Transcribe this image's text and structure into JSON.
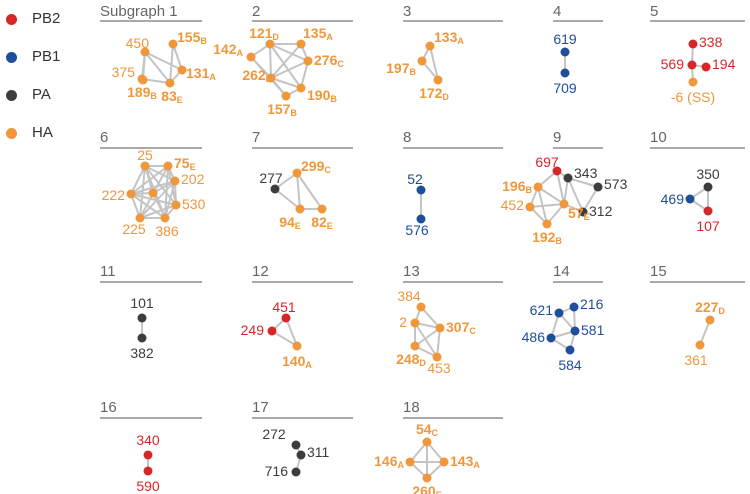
{
  "colors": {
    "PB2": "#d62728",
    "PB1": "#1f4e9b",
    "PA": "#3d3d3d",
    "HA": "#f0973b",
    "edge": "#c4c4c4",
    "rule": "#a9a9a9",
    "title": "#666666"
  },
  "legend": [
    {
      "label": "PB2",
      "group": "PB2"
    },
    {
      "label": "PB1",
      "group": "PB1"
    },
    {
      "label": "PA",
      "group": "PA"
    },
    {
      "label": "HA",
      "group": "HA"
    }
  ],
  "subgraphs": [
    {
      "title": "Subgraph 1",
      "nodes": [
        {
          "num": "450",
          "group": "HA"
        },
        {
          "num": "155",
          "sub": "B",
          "group": "HA",
          "bold": true
        },
        {
          "num": "375",
          "group": "HA"
        },
        {
          "num": "131",
          "sub": "A",
          "group": "HA",
          "bold": true
        },
        {
          "num": "189",
          "sub": "B",
          "group": "HA",
          "bold": true
        },
        {
          "num": "83",
          "sub": "E",
          "group": "HA",
          "bold": true
        }
      ],
      "edges": [
        [
          0,
          2
        ],
        [
          0,
          3
        ],
        [
          0,
          4
        ],
        [
          0,
          5
        ],
        [
          1,
          3
        ],
        [
          2,
          4
        ],
        [
          3,
          5
        ],
        [
          4,
          5
        ],
        [
          1,
          5
        ]
      ]
    },
    {
      "title": "2",
      "nodes": [
        {
          "num": "121",
          "sub": "D",
          "group": "HA",
          "bold": true
        },
        {
          "num": "135",
          "sub": "A",
          "group": "HA",
          "bold": true
        },
        {
          "num": "142",
          "sub": "A",
          "group": "HA",
          "bold": true
        },
        {
          "num": "276",
          "sub": "C",
          "group": "HA",
          "bold": true
        },
        {
          "num": "262",
          "sub": "E",
          "group": "HA",
          "bold": true
        },
        {
          "num": "157",
          "sub": "B",
          "group": "HA",
          "bold": true
        },
        {
          "num": "190",
          "sub": "B",
          "group": "HA",
          "bold": true
        }
      ],
      "edges": [
        [
          0,
          1
        ],
        [
          0,
          2
        ],
        [
          0,
          3
        ],
        [
          0,
          4
        ],
        [
          1,
          3
        ],
        [
          1,
          4
        ],
        [
          2,
          4
        ],
        [
          2,
          5
        ],
        [
          3,
          4
        ],
        [
          3,
          6
        ],
        [
          4,
          5
        ],
        [
          4,
          6
        ],
        [
          5,
          6
        ],
        [
          0,
          6
        ]
      ]
    },
    {
      "title": "3",
      "nodes": [
        {
          "num": "133",
          "sub": "A",
          "group": "HA",
          "bold": true
        },
        {
          "num": "197",
          "sub": "B",
          "group": "HA",
          "bold": true
        },
        {
          "num": "172",
          "sub": "D",
          "group": "HA",
          "bold": true
        }
      ],
      "edges": [
        [
          0,
          1
        ],
        [
          0,
          2
        ],
        [
          1,
          2
        ]
      ]
    },
    {
      "title": "4",
      "nodes": [
        {
          "num": "619",
          "group": "PB1"
        },
        {
          "num": "709",
          "group": "PB1"
        }
      ],
      "edges": [
        [
          0,
          1
        ]
      ]
    },
    {
      "title": "5",
      "nodes": [
        {
          "num": "338",
          "group": "PB2"
        },
        {
          "num": "569",
          "group": "PB2"
        },
        {
          "num": "194",
          "group": "PB2"
        },
        {
          "num": "-6 (SS)",
          "group": "HA"
        }
      ],
      "edges": [
        [
          0,
          1
        ],
        [
          1,
          2
        ],
        [
          1,
          3
        ]
      ]
    },
    {
      "title": "6",
      "nodes": [
        {
          "num": "25",
          "group": "HA"
        },
        {
          "num": "75",
          "sub": "E",
          "group": "HA",
          "bold": true
        },
        {
          "num": "202",
          "group": "HA"
        },
        {
          "num": "530",
          "group": "HA"
        },
        {
          "num": "386",
          "group": "HA"
        },
        {
          "num": "225",
          "group": "HA"
        },
        {
          "num": "222",
          "group": "HA"
        },
        {
          "num": "",
          "group": "HA"
        }
      ],
      "edges": [
        [
          0,
          1
        ],
        [
          0,
          2
        ],
        [
          0,
          3
        ],
        [
          0,
          4
        ],
        [
          0,
          5
        ],
        [
          0,
          6
        ],
        [
          1,
          2
        ],
        [
          1,
          3
        ],
        [
          1,
          4
        ],
        [
          1,
          5
        ],
        [
          1,
          6
        ],
        [
          2,
          3
        ],
        [
          2,
          4
        ],
        [
          2,
          5
        ],
        [
          2,
          6
        ],
        [
          3,
          4
        ],
        [
          3,
          5
        ],
        [
          3,
          6
        ],
        [
          4,
          5
        ],
        [
          4,
          6
        ],
        [
          5,
          6
        ],
        [
          7,
          0
        ],
        [
          7,
          2
        ],
        [
          7,
          4
        ],
        [
          7,
          6
        ]
      ]
    },
    {
      "title": "7",
      "nodes": [
        {
          "num": "277",
          "group": "PA"
        },
        {
          "num": "299",
          "sub": "C",
          "group": "HA",
          "bold": true
        },
        {
          "num": "94",
          "sub": "E",
          "group": "HA",
          "bold": true
        },
        {
          "num": "82",
          "sub": "E",
          "group": "HA",
          "bold": true
        }
      ],
      "edges": [
        [
          0,
          1
        ],
        [
          0,
          2
        ],
        [
          1,
          2
        ],
        [
          1,
          3
        ],
        [
          2,
          3
        ]
      ]
    },
    {
      "title": "8",
      "nodes": [
        {
          "num": "52",
          "group": "PB1"
        },
        {
          "num": "576",
          "group": "PB1"
        }
      ],
      "edges": [
        [
          0,
          1
        ]
      ]
    },
    {
      "title": "9",
      "nodes": [
        {
          "num": "697",
          "group": "PB2"
        },
        {
          "num": "343",
          "group": "PA"
        },
        {
          "num": "573",
          "group": "PA"
        },
        {
          "num": "312",
          "group": "PA"
        },
        {
          "num": "196",
          "sub": "B",
          "group": "HA",
          "bold": true
        },
        {
          "num": "452",
          "group": "HA"
        },
        {
          "num": "57",
          "sub": "E",
          "group": "HA",
          "bold": true
        },
        {
          "num": "192",
          "sub": "B",
          "group": "HA",
          "bold": true
        }
      ],
      "edges": [
        [
          0,
          1
        ],
        [
          0,
          4
        ],
        [
          0,
          6
        ],
        [
          1,
          2
        ],
        [
          1,
          3
        ],
        [
          1,
          6
        ],
        [
          2,
          3
        ],
        [
          4,
          5
        ],
        [
          4,
          6
        ],
        [
          4,
          7
        ],
        [
          5,
          7
        ],
        [
          6,
          7
        ],
        [
          5,
          6
        ],
        [
          3,
          6
        ]
      ]
    },
    {
      "title": "10",
      "nodes": [
        {
          "num": "350",
          "group": "PA"
        },
        {
          "num": "469",
          "group": "PB1"
        },
        {
          "num": "107",
          "group": "PB2"
        }
      ],
      "edges": [
        [
          0,
          1
        ],
        [
          0,
          2
        ],
        [
          1,
          2
        ]
      ]
    },
    {
      "title": "11",
      "nodes": [
        {
          "num": "101",
          "group": "PA"
        },
        {
          "num": "382",
          "group": "PA"
        }
      ],
      "edges": [
        [
          0,
          1
        ]
      ]
    },
    {
      "title": "12",
      "nodes": [
        {
          "num": "451",
          "group": "PB2"
        },
        {
          "num": "249",
          "group": "PB2"
        },
        {
          "num": "140",
          "sub": "A",
          "group": "HA",
          "bold": true
        }
      ],
      "edges": [
        [
          0,
          1
        ],
        [
          0,
          2
        ],
        [
          1,
          2
        ]
      ]
    },
    {
      "title": "13",
      "nodes": [
        {
          "num": "384",
          "group": "HA"
        },
        {
          "num": "2",
          "group": "HA"
        },
        {
          "num": "307",
          "sub": "C",
          "group": "HA",
          "bold": true
        },
        {
          "num": "248",
          "sub": "D",
          "group": "HA",
          "bold": true
        },
        {
          "num": "453",
          "group": "HA"
        }
      ],
      "edges": [
        [
          0,
          1
        ],
        [
          0,
          2
        ],
        [
          1,
          2
        ],
        [
          1,
          3
        ],
        [
          2,
          3
        ],
        [
          2,
          4
        ],
        [
          3,
          4
        ],
        [
          1,
          4
        ]
      ]
    },
    {
      "title": "14",
      "nodes": [
        {
          "num": "621",
          "group": "PB1"
        },
        {
          "num": "216",
          "group": "PB1"
        },
        {
          "num": "581",
          "group": "PB1"
        },
        {
          "num": "486",
          "group": "PB1"
        },
        {
          "num": "584",
          "group": "PB1"
        }
      ],
      "edges": [
        [
          0,
          1
        ],
        [
          0,
          2
        ],
        [
          0,
          3
        ],
        [
          1,
          2
        ],
        [
          2,
          3
        ],
        [
          2,
          4
        ],
        [
          3,
          4
        ]
      ]
    },
    {
      "title": "15",
      "nodes": [
        {
          "num": "227",
          "sub": "D",
          "group": "HA",
          "bold": true
        },
        {
          "num": "361",
          "group": "HA"
        }
      ],
      "edges": [
        [
          0,
          1
        ]
      ]
    },
    {
      "title": "16",
      "nodes": [
        {
          "num": "340",
          "group": "PB2"
        },
        {
          "num": "590",
          "group": "PB2"
        }
      ],
      "edges": [
        [
          0,
          1
        ]
      ]
    },
    {
      "title": "17",
      "nodes": [
        {
          "num": "272",
          "group": "PA"
        },
        {
          "num": "311",
          "group": "PA"
        },
        {
          "num": "716",
          "group": "PA"
        }
      ],
      "edges": [
        [
          0,
          1
        ],
        [
          1,
          2
        ]
      ]
    },
    {
      "title": "18",
      "nodes": [
        {
          "num": "54",
          "sub": "C",
          "group": "HA",
          "bold": true
        },
        {
          "num": "146",
          "sub": "A",
          "group": "HA",
          "bold": true
        },
        {
          "num": "143",
          "sub": "A",
          "group": "HA",
          "bold": true
        },
        {
          "num": "260",
          "sub": "E",
          "group": "HA",
          "bold": true
        }
      ],
      "edges": [
        [
          0,
          1
        ],
        [
          0,
          2
        ],
        [
          0,
          3
        ],
        [
          1,
          2
        ],
        [
          1,
          3
        ],
        [
          2,
          3
        ]
      ]
    }
  ]
}
